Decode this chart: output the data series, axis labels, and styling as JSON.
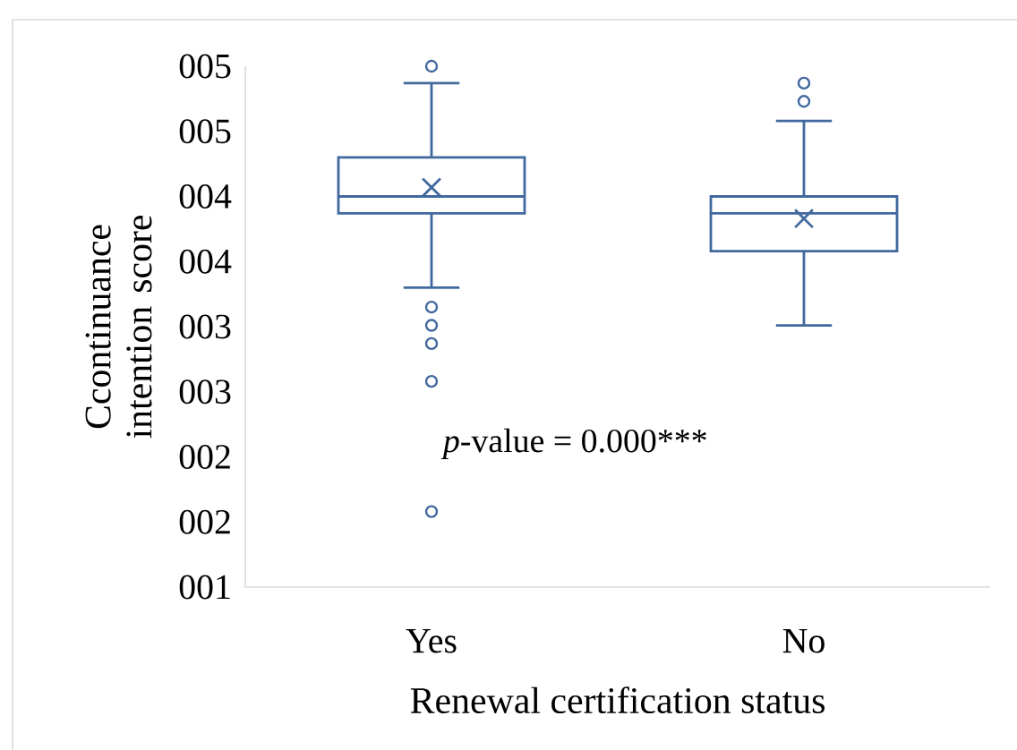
{
  "chart_data": {
    "type": "box",
    "xlabel": "Renewal certification status",
    "ylabel": "Ccontinuance intention score",
    "categories": [
      "Yes",
      "No"
    ],
    "color": "#41699e",
    "boxes": [
      {
        "low": 3.3,
        "q1": 3.87,
        "median": 4.0,
        "q3": 4.3,
        "high": 4.87,
        "mean": 4.07,
        "outliers": [
          5.0,
          3.15,
          3.01,
          2.87,
          2.58,
          1.58
        ]
      },
      {
        "low": 3.01,
        "q1": 3.58,
        "median": 3.87,
        "q3": 4.0,
        "high": 4.58,
        "mean": 3.83,
        "outliers": [
          4.87,
          4.73
        ]
      }
    ],
    "ylim": [
      1,
      5
    ],
    "yticks": [
      {
        "value": 1,
        "label": "001"
      },
      {
        "value": 1.5,
        "label": "002"
      },
      {
        "value": 2,
        "label": "002"
      },
      {
        "value": 2.5,
        "label": "003"
      },
      {
        "value": 3,
        "label": "003"
      },
      {
        "value": 3.5,
        "label": "004"
      },
      {
        "value": 4,
        "label": "004"
      },
      {
        "value": 4.5,
        "label": "005"
      },
      {
        "value": 5,
        "label": "005"
      }
    ],
    "annotations": [
      "*p*-value = 0.000***"
    ]
  }
}
